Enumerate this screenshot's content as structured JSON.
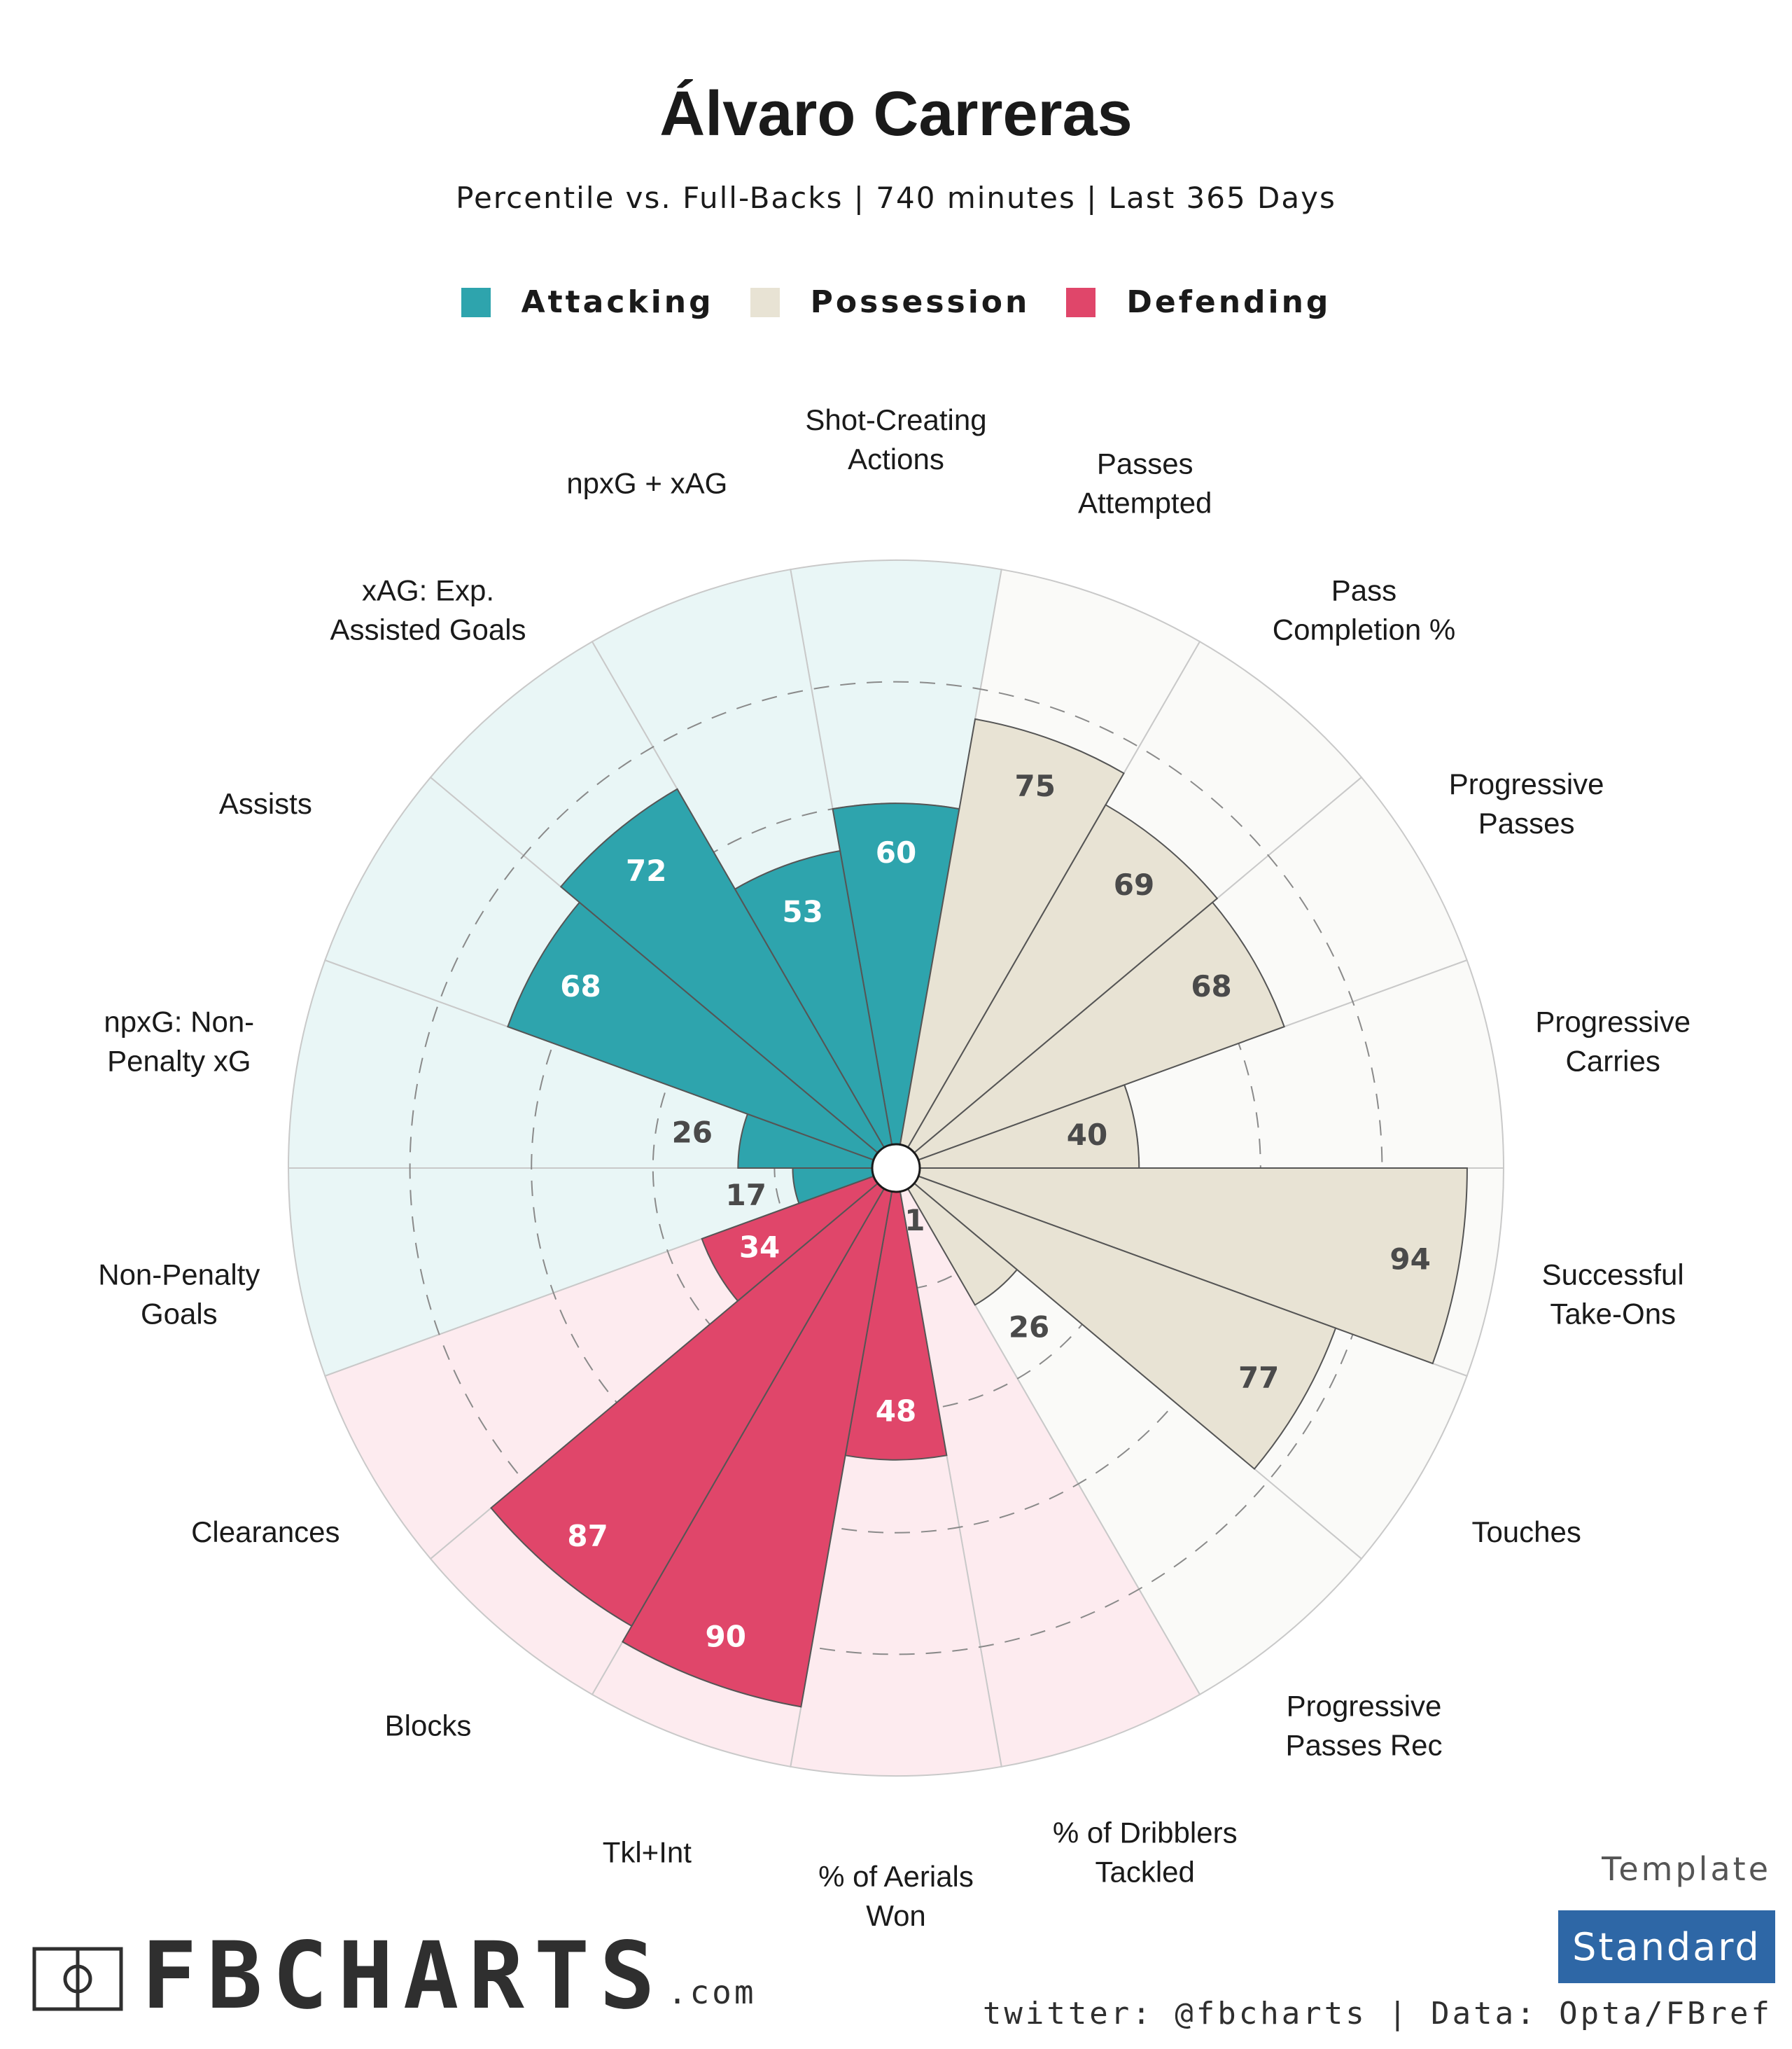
{
  "header": {
    "title": "Álvaro Carreras",
    "subtitle": "Percentile vs. Full-Backs | 740 minutes | Last 365 Days"
  },
  "legend": [
    {
      "label": "Attacking",
      "color": "#2ea4ad"
    },
    {
      "label": "Possession",
      "color": "#e8e3d4"
    },
    {
      "label": "Defending",
      "color": "#e0466a"
    }
  ],
  "chart_data": {
    "type": "polar-bar",
    "range": [
      0,
      100
    ],
    "rings": [
      20,
      40,
      60,
      80
    ],
    "grid": true,
    "legend_position": "top",
    "categories": [
      {
        "label": [
          "Shot-Creating",
          "Actions"
        ],
        "value": 60,
        "group": "Attacking"
      },
      {
        "label": [
          "Passes",
          "Attempted"
        ],
        "value": 75,
        "group": "Possession"
      },
      {
        "label": [
          "Pass",
          "Completion %"
        ],
        "value": 69,
        "group": "Possession"
      },
      {
        "label": [
          "Progressive",
          "Passes"
        ],
        "value": 68,
        "group": "Possession"
      },
      {
        "label": [
          "Progressive",
          "Carries"
        ],
        "value": 40,
        "group": "Possession"
      },
      {
        "label": [
          "Successful",
          "Take-Ons"
        ],
        "value": 94,
        "group": "Possession"
      },
      {
        "label": [
          "Touches"
        ],
        "value": 77,
        "group": "Possession"
      },
      {
        "label": [
          "Progressive",
          "Passes Rec"
        ],
        "value": 26,
        "group": "Possession"
      },
      {
        "label": [
          "% of Dribblers",
          "Tackled"
        ],
        "value": 1,
        "group": "Defending"
      },
      {
        "label": [
          "% of Aerials",
          "Won"
        ],
        "value": 48,
        "group": "Defending"
      },
      {
        "label": [
          "Tkl+Int"
        ],
        "value": 90,
        "group": "Defending"
      },
      {
        "label": [
          "Blocks"
        ],
        "value": 87,
        "group": "Defending"
      },
      {
        "label": [
          "Clearances"
        ],
        "value": 34,
        "group": "Defending"
      },
      {
        "label": [
          "Non-Penalty",
          "Goals"
        ],
        "value": 17,
        "group": "Attacking"
      },
      {
        "label": [
          "npxG: Non-",
          "Penalty xG"
        ],
        "value": 26,
        "group": "Attacking"
      },
      {
        "label": [
          "Assists"
        ],
        "value": 68,
        "group": "Attacking"
      },
      {
        "label": [
          "xAG: Exp.",
          "Assisted Goals"
        ],
        "value": 72,
        "group": "Attacking"
      },
      {
        "label": [
          "npxG + xAG"
        ],
        "value": 53,
        "group": "Attacking"
      }
    ],
    "group_colors": {
      "Attacking": {
        "bar": "#2ea4ad",
        "bg": "#e9f6f6",
        "text": "#ffffff"
      },
      "Possession": {
        "bar": "#e8e3d4",
        "bg": "#fafaf8",
        "text": "#4a4a4a"
      },
      "Defending": {
        "bar": "#e0466a",
        "bg": "#fdebef",
        "text": "#ffffff"
      }
    },
    "outside_value_color": "#4a4a4a"
  },
  "footer": {
    "logo_text": "FBCHARTS",
    "logo_suffix": ".com",
    "template_label": "Template",
    "template_value": "Standard",
    "credits": "twitter: @fbcharts | Data: Opta/FBref"
  }
}
